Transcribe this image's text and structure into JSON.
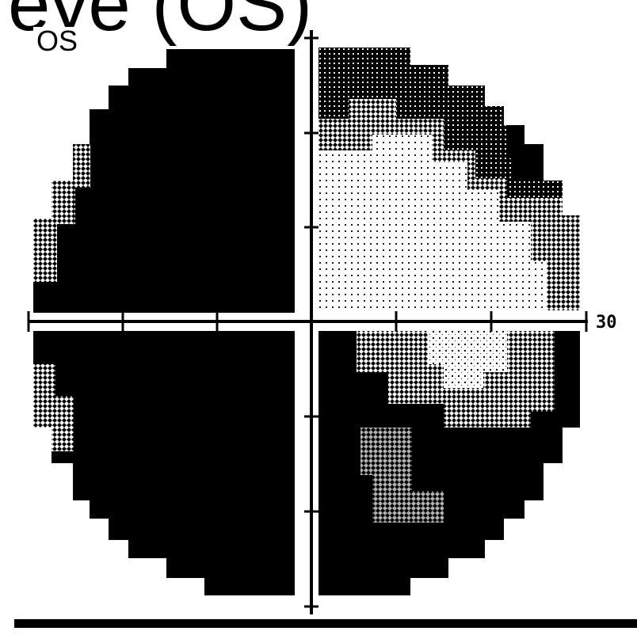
{
  "figure": {
    "title_fragment": "eye (OS)",
    "eye_label": "OS",
    "axis_label": "30"
  },
  "visual_field": {
    "eccentricity_max_deg": 30,
    "quadrants": {
      "superior_temporal": "dense-defect",
      "inferior_temporal": "dense-defect",
      "superior_nasal": "partial-defect-with-preserved-center",
      "inferior_nasal": "dense-defect-with-partial-island"
    },
    "colors": {
      "defect": "#000000",
      "background": "#ffffff"
    }
  }
}
